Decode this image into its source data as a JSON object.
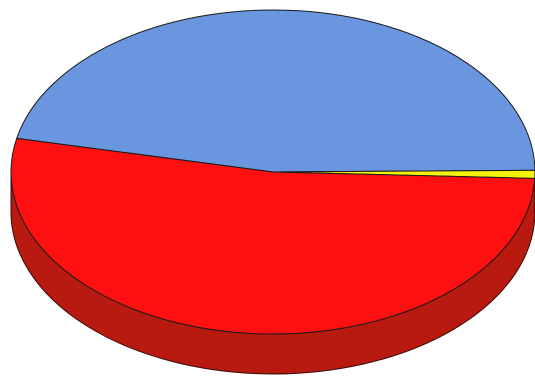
{
  "chart_data": {
    "type": "pie",
    "style": "3d-tilted",
    "title": "",
    "legend": "none",
    "slices": [
      {
        "value": 46.5,
        "color": "#6a96e0",
        "side_color": "#4a6fae"
      },
      {
        "value": 0.8,
        "color": "#f2f20a",
        "side_color": "#b0b000"
      },
      {
        "value": 52.7,
        "color": "#ff1010",
        "side_color": "#b81a10"
      }
    ]
  }
}
